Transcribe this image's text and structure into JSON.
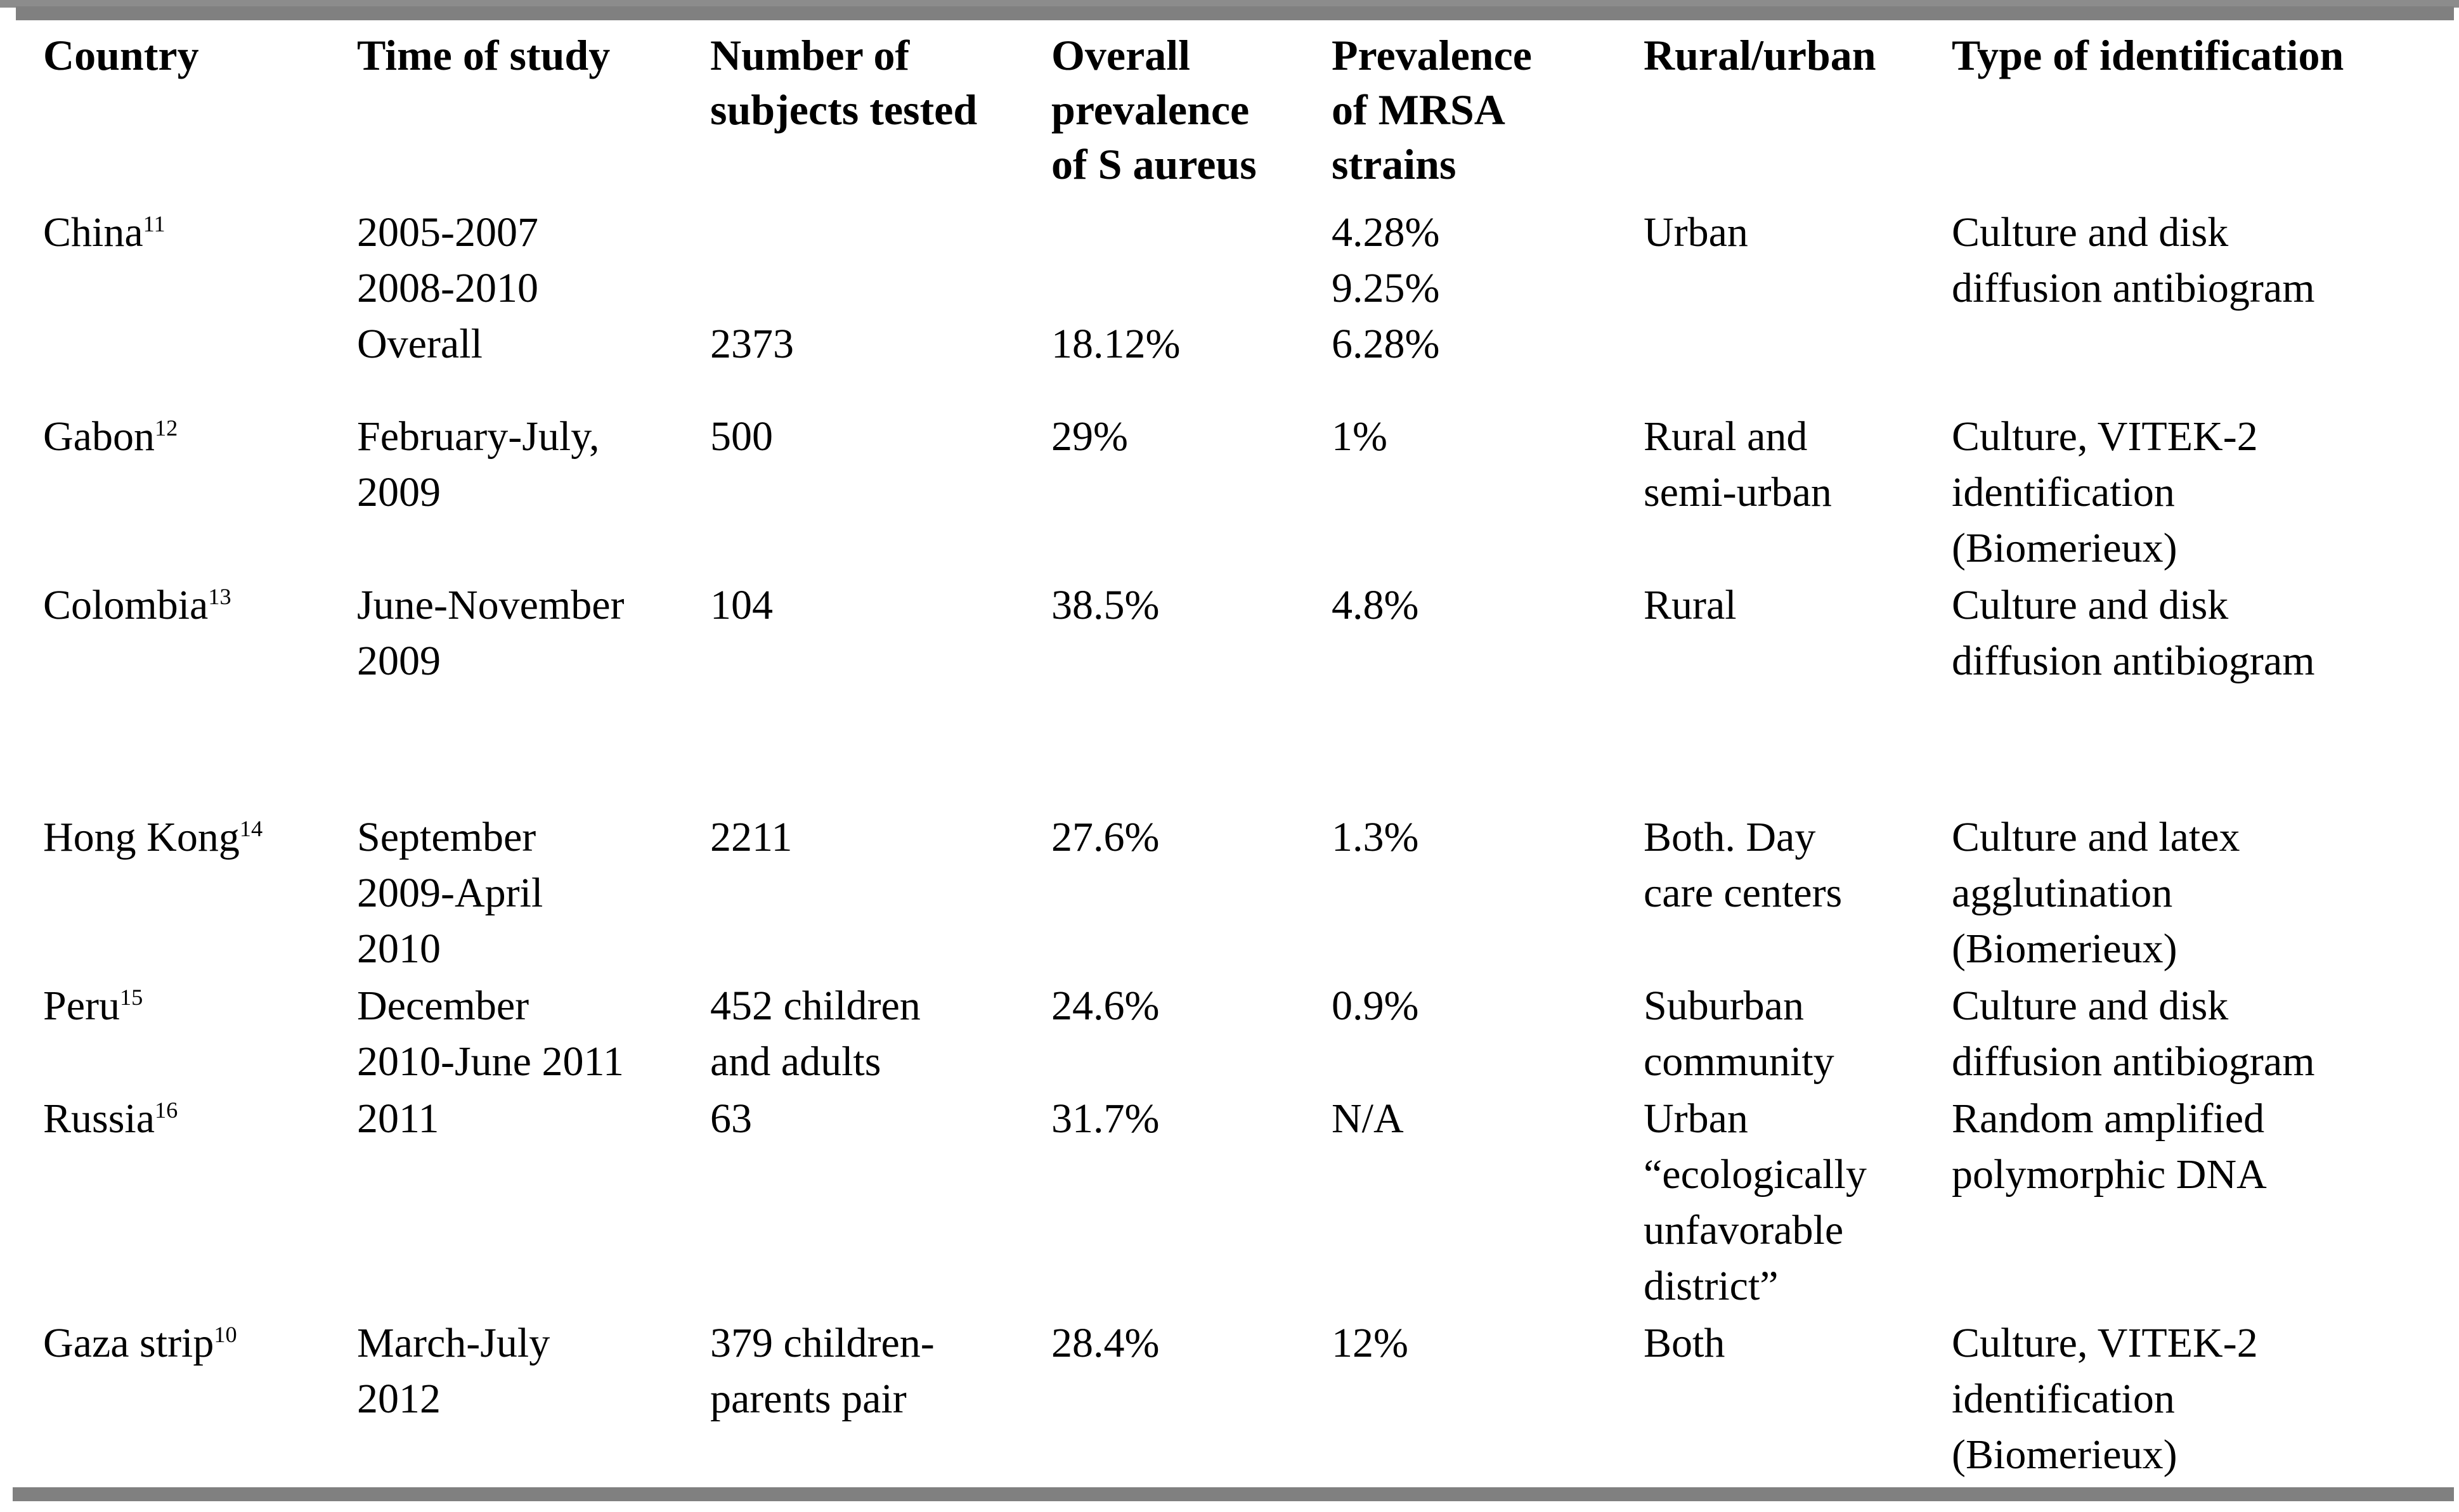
{
  "colors": {
    "background": "#ffffff",
    "text": "#000000",
    "thick_bar": "#808080",
    "header_rule": "#8c8c8c"
  },
  "table": {
    "header": {
      "country": [
        "Country"
      ],
      "time": [
        "Time of study"
      ],
      "subjects": [
        "Number of",
        "subjects tested"
      ],
      "overall": [
        "Overall",
        "prevalence",
        "of S aureus"
      ],
      "mrsa": [
        "Prevalence",
        "of MRSA",
        "strains"
      ],
      "rural": [
        "Rural/urban"
      ],
      "type": [
        "Type of identification"
      ]
    },
    "rows": [
      {
        "country": {
          "name": "China",
          "ref": "11"
        },
        "time": [
          "2005-2007",
          "2008-2010",
          "Overall"
        ],
        "subjects": [
          "",
          "",
          "2373"
        ],
        "overall": [
          "",
          "",
          "18.12%"
        ],
        "mrsa": [
          "4.28%",
          "9.25%",
          "6.28%"
        ],
        "rural": [
          "Urban"
        ],
        "type": [
          "Culture and disk",
          "diffusion antibiogram"
        ]
      },
      {
        "country": {
          "name": "Gabon",
          "ref": "12"
        },
        "time": [
          "February-July,",
          "2009"
        ],
        "subjects": [
          "500"
        ],
        "overall": [
          "29%"
        ],
        "mrsa": [
          "1%"
        ],
        "rural": [
          "Rural and",
          "semi-urban"
        ],
        "type": [
          "Culture, VITEK-2",
          "identification",
          "(Biomerieux)"
        ]
      },
      {
        "country": {
          "name": "Colombia",
          "ref": "13"
        },
        "time": [
          "June-November",
          "2009"
        ],
        "subjects": [
          "104"
        ],
        "overall": [
          "38.5%"
        ],
        "mrsa": [
          "4.8%"
        ],
        "rural": [
          "Rural"
        ],
        "type": [
          "Culture and disk",
          "diffusion antibiogram"
        ]
      },
      {
        "country": {
          "name": "Hong Kong",
          "ref": "14"
        },
        "time": [
          "September",
          "2009-April",
          "2010"
        ],
        "subjects": [
          "2211"
        ],
        "overall": [
          "27.6%"
        ],
        "mrsa": [
          "1.3%"
        ],
        "rural": [
          "Both. Day",
          "care centers"
        ],
        "type": [
          "Culture and latex",
          "agglutination",
          "(Biomerieux)"
        ]
      },
      {
        "country": {
          "name": "Peru",
          "ref": "15"
        },
        "time": [
          "December",
          "2010-June 2011"
        ],
        "subjects": [
          "452 children",
          "and adults"
        ],
        "overall": [
          "24.6%"
        ],
        "mrsa": [
          "0.9%"
        ],
        "rural": [
          "Suburban",
          "community"
        ],
        "type": [
          "Culture and disk",
          "diffusion antibiogram"
        ]
      },
      {
        "country": {
          "name": "Russia",
          "ref": "16"
        },
        "time": [
          "2011"
        ],
        "subjects": [
          "63"
        ],
        "overall": [
          "31.7%"
        ],
        "mrsa": [
          "N/A"
        ],
        "rural": [
          "Urban",
          "“ecologically",
          "unfavorable",
          "district”"
        ],
        "type": [
          "Random amplified",
          "polymorphic DNA"
        ]
      },
      {
        "country": {
          "name": "Gaza strip",
          "ref": "10"
        },
        "time": [
          "March-July",
          "2012"
        ],
        "subjects": [
          "379 children-",
          "parents pair"
        ],
        "overall": [
          "28.4%"
        ],
        "mrsa": [
          "12%"
        ],
        "rural": [
          "Both"
        ],
        "type": [
          "Culture, VITEK-2",
          "identification",
          "(Biomerieux)"
        ]
      }
    ]
  }
}
